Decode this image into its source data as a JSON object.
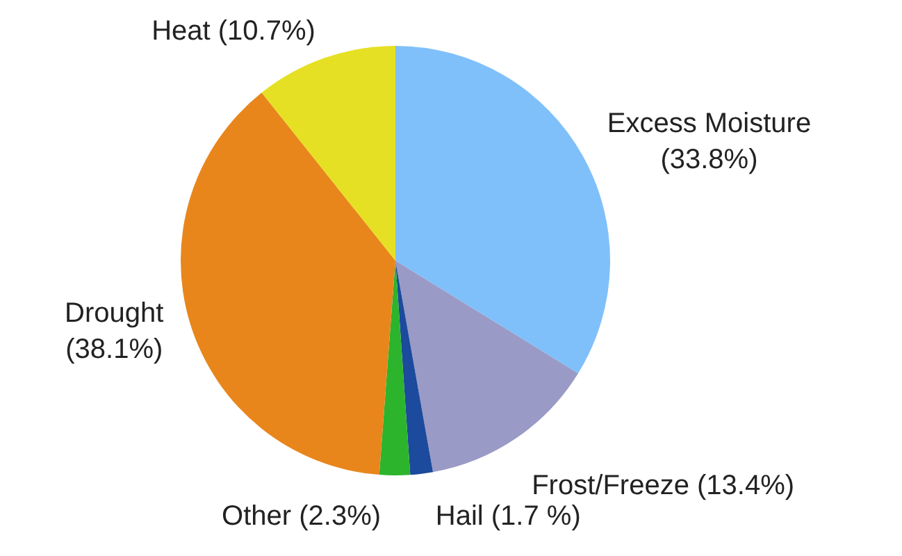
{
  "chart_data": {
    "type": "pie",
    "categories": [
      "Excess Moisture",
      "Frost/Freeze",
      "Hail",
      "Other",
      "Drought",
      "Heat"
    ],
    "values": [
      33.8,
      13.4,
      1.7,
      2.3,
      38.1,
      10.7
    ],
    "value_labels": [
      "(33.8%)",
      "(13.4%)",
      "(1.7 %)",
      "(2.3%)",
      "(38.1%)",
      "(10.7%)"
    ],
    "colors": [
      "#80c0fa",
      "#9a9ac6",
      "#1c4a9c",
      "#2cb42c",
      "#e8861c",
      "#e6e024"
    ],
    "legend": false
  }
}
